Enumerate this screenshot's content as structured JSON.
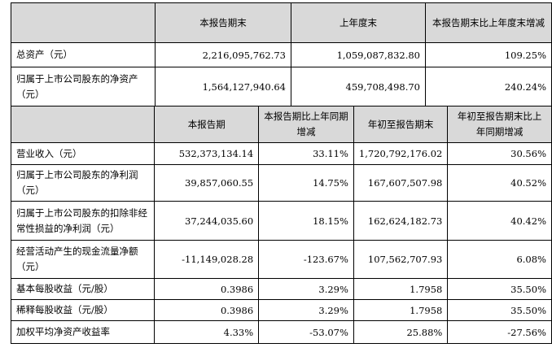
{
  "table1": {
    "headers": [
      "",
      "本报告期末",
      "上年度末",
      "本报告期末比上年度末增减"
    ],
    "rows": [
      [
        "总资产（元）",
        "2,216,095,762.73",
        "1,059,087,832.80",
        "109.25%"
      ],
      [
        "归属于上市公司股东的净资产（元）",
        "1,564,127,940.64",
        "459,708,498.70",
        "240.24%"
      ]
    ]
  },
  "table2": {
    "headers": [
      "",
      "本报告期",
      "本报告期比上年同期增减",
      "年初至报告期末",
      "年初至报告期末比上年同期增减"
    ],
    "rows": [
      [
        "营业收入（元）",
        "532,373,134.14",
        "33.11%",
        "1,720,792,176.02",
        "30.56%"
      ],
      [
        "归属于上市公司股东的净利润（元）",
        "39,857,060.55",
        "14.75%",
        "167,607,507.98",
        "40.52%"
      ],
      [
        "归属于上市公司股东的扣除非经常性损益的净利润（元）",
        "37,244,035.60",
        "18.15%",
        "162,624,182.73",
        "40.42%"
      ],
      [
        "经营活动产生的现金流量净额（元）",
        "-11,149,028.28",
        "-123.67%",
        "107,562,707.93",
        "6.08%"
      ],
      [
        "基本每股收益（元/股）",
        "0.3986",
        "3.29%",
        "1.7958",
        "35.50%"
      ],
      [
        "稀释每股收益（元/股）",
        "0.3986",
        "3.29%",
        "1.7958",
        "35.50%"
      ],
      [
        "加权平均净资产收益率",
        "4.33%",
        "-53.07%",
        "25.88%",
        "-27.56%"
      ]
    ]
  }
}
